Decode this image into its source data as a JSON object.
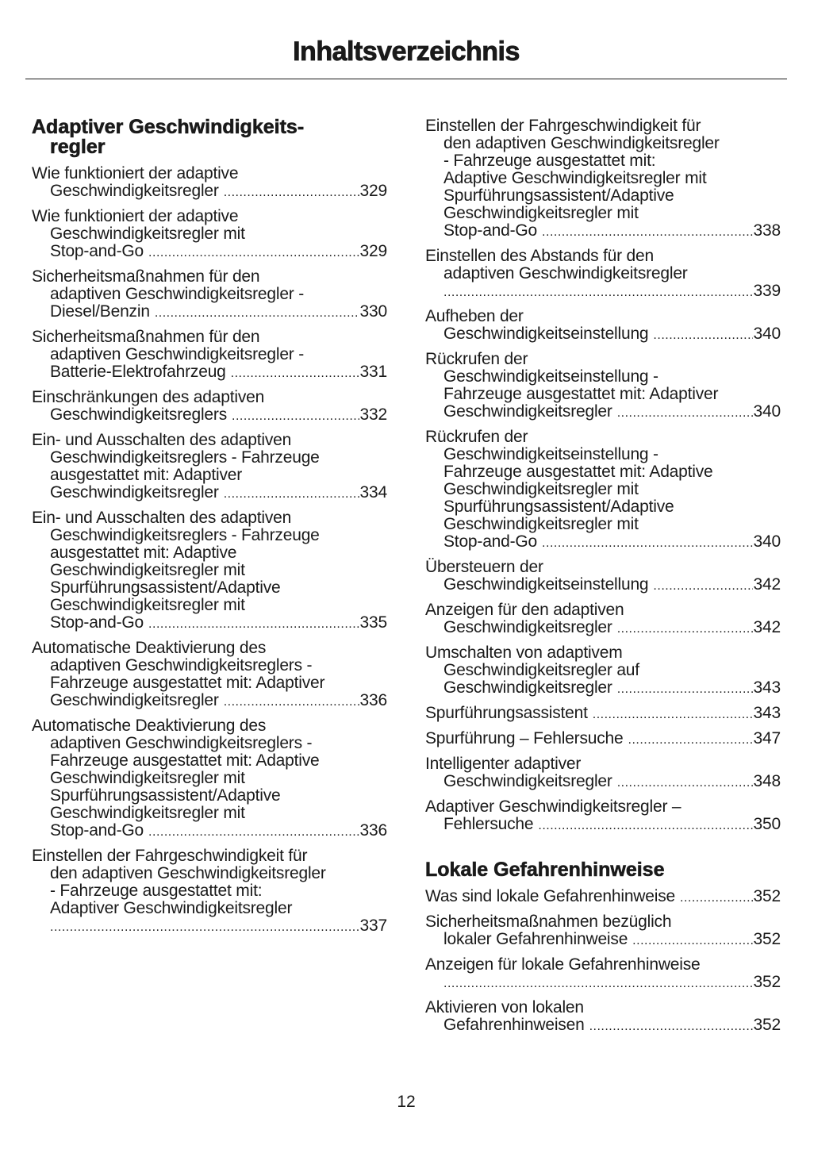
{
  "page_title": "Inhaltsverzeichnis",
  "page_number": "12",
  "left_column": {
    "section_title": [
      "Adaptiver Geschwindigkeits-",
      "regler"
    ],
    "entries": [
      {
        "lines": [
          "Wie funktioniert der adaptive",
          "Geschwindigkeitsregler"
        ],
        "page": "329"
      },
      {
        "lines": [
          "Wie funktioniert der adaptive",
          "Geschwindigkeitsregler mit",
          "Stop-and-Go"
        ],
        "page": "329"
      },
      {
        "lines": [
          "Sicherheitsmaßnahmen für den",
          "adaptiven Geschwindigkeitsregler -",
          "Diesel/Benzin"
        ],
        "page": "330"
      },
      {
        "lines": [
          "Sicherheitsmaßnahmen für den",
          "adaptiven Geschwindigkeitsregler -",
          "Batterie-Elektrofahrzeug"
        ],
        "page": "331"
      },
      {
        "lines": [
          "Einschränkungen des adaptiven",
          "Geschwindigkeitsreglers"
        ],
        "page": "332"
      },
      {
        "lines": [
          "Ein- und Ausschalten des adaptiven",
          "Geschwindigkeitsreglers - Fahrzeuge",
          "ausgestattet mit: Adaptiver",
          "Geschwindigkeitsregler"
        ],
        "page": "334"
      },
      {
        "lines": [
          "Ein- und Ausschalten des adaptiven",
          "Geschwindigkeitsreglers - Fahrzeuge",
          "ausgestattet mit: Adaptive",
          "Geschwindigkeitsregler mit",
          "Spurführungsassistent/Adaptive",
          "Geschwindigkeitsregler mit",
          "Stop-and-Go"
        ],
        "page": "335"
      },
      {
        "lines": [
          "Automatische Deaktivierung des",
          "adaptiven Geschwindigkeitsreglers -",
          "Fahrzeuge ausgestattet mit: Adaptiver",
          "Geschwindigkeitsregler"
        ],
        "page": "336"
      },
      {
        "lines": [
          "Automatische Deaktivierung des",
          "adaptiven Geschwindigkeitsreglers -",
          "Fahrzeuge ausgestattet mit: Adaptive",
          "Geschwindigkeitsregler mit",
          "Spurführungsassistent/Adaptive",
          "Geschwindigkeitsregler mit",
          "Stop-and-Go"
        ],
        "page": "336"
      },
      {
        "lines": [
          "Einstellen der Fahrgeschwindigkeit für",
          "den adaptiven Geschwindigkeitsregler",
          "- Fahrzeuge ausgestattet mit:",
          "Adaptiver Geschwindigkeitsregler",
          ""
        ],
        "page": "337"
      }
    ]
  },
  "right_column": {
    "entries": [
      {
        "lines": [
          "Einstellen der Fahrgeschwindigkeit für",
          "den adaptiven Geschwindigkeitsregler",
          "- Fahrzeuge ausgestattet mit:",
          "Adaptive Geschwindigkeitsregler mit",
          "Spurführungsassistent/Adaptive",
          "Geschwindigkeitsregler mit",
          "Stop-and-Go"
        ],
        "page": "338"
      },
      {
        "lines": [
          "Einstellen des Abstands für den",
          "adaptiven Geschwindigkeitsregler",
          ""
        ],
        "page": "339"
      },
      {
        "lines": [
          "Aufheben der",
          "Geschwindigkeitseinstellung"
        ],
        "page": "340"
      },
      {
        "lines": [
          "Rückrufen der",
          "Geschwindigkeitseinstellung -",
          "Fahrzeuge ausgestattet mit: Adaptiver",
          "Geschwindigkeitsregler"
        ],
        "page": "340"
      },
      {
        "lines": [
          "Rückrufen der",
          "Geschwindigkeitseinstellung -",
          "Fahrzeuge ausgestattet mit: Adaptive",
          "Geschwindigkeitsregler mit",
          "Spurführungsassistent/Adaptive",
          "Geschwindigkeitsregler mit",
          "Stop-and-Go"
        ],
        "page": "340"
      },
      {
        "lines": [
          "Übersteuern der",
          "Geschwindigkeitseinstellung"
        ],
        "page": "342"
      },
      {
        "lines": [
          "Anzeigen für den adaptiven",
          "Geschwindigkeitsregler"
        ],
        "page": "342"
      },
      {
        "lines": [
          "Umschalten von adaptivem",
          "Geschwindigkeitsregler auf",
          "Geschwindigkeitsregler"
        ],
        "page": "343"
      },
      {
        "lines": [
          "Spurführungsassistent"
        ],
        "page": "343"
      },
      {
        "lines": [
          "Spurführung – Fehlersuche"
        ],
        "page": "347"
      },
      {
        "lines": [
          "Intelligenter adaptiver",
          "Geschwindigkeitsregler"
        ],
        "page": "348"
      },
      {
        "lines": [
          "Adaptiver Geschwindigkeitsregler –",
          "Fehlersuche"
        ],
        "page": "350"
      }
    ],
    "section2_title": "Lokale Gefahrenhinweise",
    "section2_entries": [
      {
        "lines": [
          "Was sind lokale Gefahrenhinweise"
        ],
        "page": "352"
      },
      {
        "lines": [
          "Sicherheitsmaßnahmen bezüglich",
          "lokaler Gefahrenhinweise"
        ],
        "page": "352"
      },
      {
        "lines": [
          "Anzeigen für lokale Gefahrenhinweise",
          ""
        ],
        "page": "352"
      },
      {
        "lines": [
          "Aktivieren von lokalen",
          "Gefahrenhinweisen"
        ],
        "page": "352"
      }
    ]
  }
}
